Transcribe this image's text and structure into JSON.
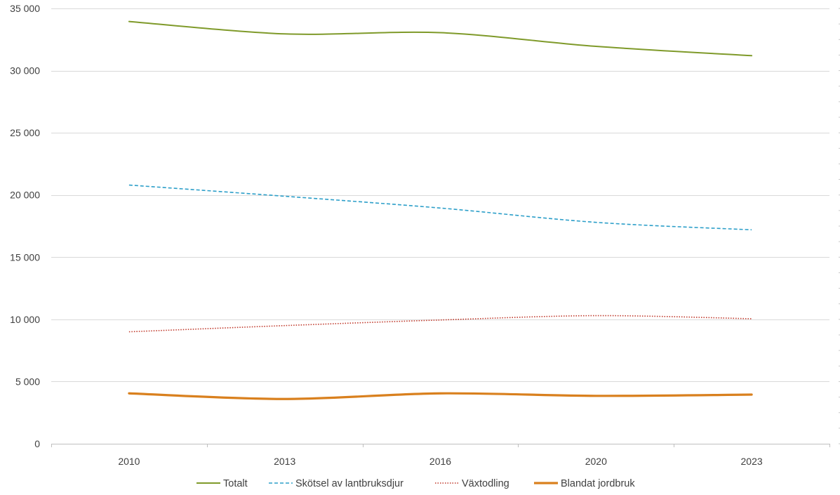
{
  "chart_data": {
    "type": "line",
    "title": "",
    "xlabel": "",
    "ylabel": "",
    "categories": [
      "2010",
      "2013",
      "2016",
      "2020",
      "2023"
    ],
    "ylim": [
      0,
      35000
    ],
    "yticks": [
      0,
      5000,
      10000,
      15000,
      20000,
      25000,
      30000,
      35000
    ],
    "ytick_labels": [
      "0",
      "5 000",
      "10 000",
      "15 000",
      "20 000",
      "25 000",
      "30 000",
      "35 000"
    ],
    "grid": true,
    "legend_position": "bottom",
    "series": [
      {
        "name": "Totalt",
        "values": [
          33950,
          32950,
          33050,
          31950,
          31200
        ],
        "color": "#7f9a2a",
        "line_style": "solid"
      },
      {
        "name": "Skötsel av lantbruksdjur",
        "values": [
          20800,
          19900,
          18950,
          17800,
          17200
        ],
        "color": "#2d9fc9",
        "line_style": "dashed"
      },
      {
        "name": "Växtodling",
        "values": [
          9000,
          9500,
          9950,
          10300,
          10050
        ],
        "color": "#c0392b",
        "line_style": "dotted"
      },
      {
        "name": "Blandat jordbruk",
        "values": [
          4050,
          3600,
          4050,
          3850,
          3950
        ],
        "color": "#d9801e",
        "line_style": "solid-thick"
      }
    ]
  }
}
